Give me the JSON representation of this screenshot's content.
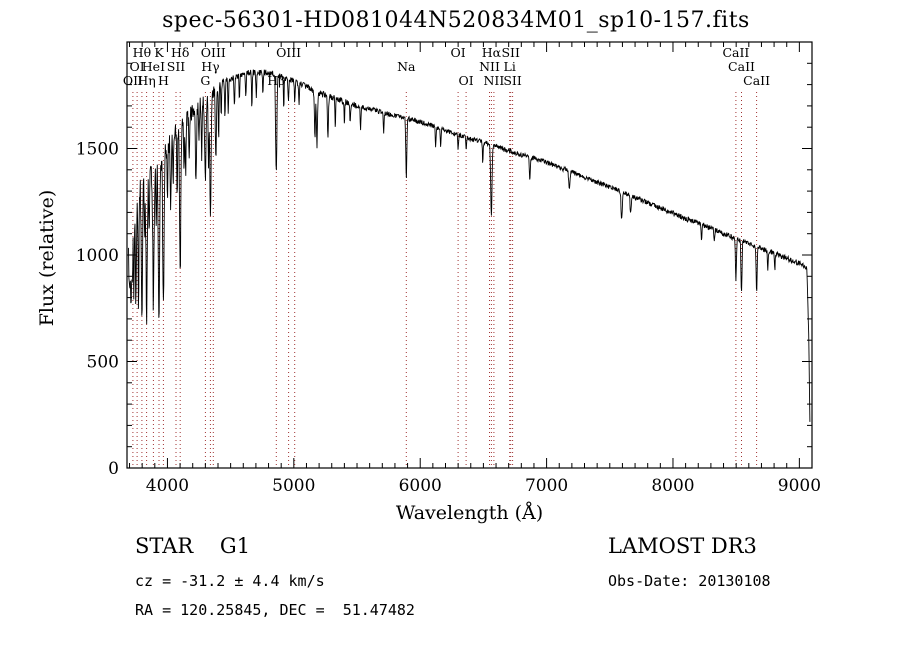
{
  "title": "spec-56301-HD081044N520834M01_sp10-157.fits",
  "footer": {
    "class_label": "STAR    G1",
    "survey": "LAMOST DR3",
    "cz": "cz = -31.2 ± 4.4 km/s",
    "obs_date": "Obs-Date: 20130108",
    "ra_dec": "RA = 120.25845, DEC =  51.47482"
  },
  "chart_data": {
    "type": "line",
    "title": "spec-56301-HD081044N520834M01_sp10-157.fits",
    "xlabel": "Wavelength (Å)",
    "ylabel": "Flux (relative)",
    "xlim": [
      3680,
      9100
    ],
    "ylim": [
      0,
      2000
    ],
    "x_ticks": [
      4000,
      5000,
      6000,
      7000,
      8000,
      9000
    ],
    "y_ticks": [
      0,
      500,
      1000,
      1500
    ],
    "grid": false,
    "line_color": "#000000",
    "marker_color": "#a03232",
    "continuum": [
      [
        3690,
        1150
      ],
      [
        3720,
        1280
      ],
      [
        3760,
        1330
      ],
      [
        3800,
        1360
      ],
      [
        3850,
        1380
      ],
      [
        3900,
        1420
      ],
      [
        3950,
        1450
      ],
      [
        4000,
        1520
      ],
      [
        4050,
        1570
      ],
      [
        4100,
        1620
      ],
      [
        4150,
        1650
      ],
      [
        4200,
        1680
      ],
      [
        4250,
        1710
      ],
      [
        4300,
        1730
      ],
      [
        4350,
        1760
      ],
      [
        4400,
        1800
      ],
      [
        4500,
        1830
      ],
      [
        4600,
        1850
      ],
      [
        4700,
        1860
      ],
      [
        4800,
        1855
      ],
      [
        4900,
        1840
      ],
      [
        5000,
        1815
      ],
      [
        5100,
        1790
      ],
      [
        5200,
        1760
      ],
      [
        5300,
        1740
      ],
      [
        5400,
        1720
      ],
      [
        5500,
        1700
      ],
      [
        5600,
        1685
      ],
      [
        5700,
        1670
      ],
      [
        5800,
        1655
      ],
      [
        5900,
        1640
      ],
      [
        6000,
        1625
      ],
      [
        6100,
        1605
      ],
      [
        6200,
        1585
      ],
      [
        6300,
        1565
      ],
      [
        6400,
        1545
      ],
      [
        6500,
        1530
      ],
      [
        6600,
        1510
      ],
      [
        6700,
        1490
      ],
      [
        6800,
        1470
      ],
      [
        6900,
        1455
      ],
      [
        7000,
        1435
      ],
      [
        7100,
        1410
      ],
      [
        7200,
        1390
      ],
      [
        7300,
        1365
      ],
      [
        7400,
        1340
      ],
      [
        7500,
        1320
      ],
      [
        7600,
        1295
      ],
      [
        7700,
        1270
      ],
      [
        7800,
        1245
      ],
      [
        7900,
        1220
      ],
      [
        8000,
        1195
      ],
      [
        8100,
        1170
      ],
      [
        8200,
        1150
      ],
      [
        8300,
        1125
      ],
      [
        8400,
        1100
      ],
      [
        8500,
        1075
      ],
      [
        8600,
        1055
      ],
      [
        8700,
        1030
      ],
      [
        8800,
        1010
      ],
      [
        8900,
        985
      ],
      [
        8980,
        965
      ],
      [
        9040,
        950
      ],
      [
        9060,
        940
      ],
      [
        9075,
        600
      ],
      [
        9085,
        120
      ]
    ],
    "absorption_lines": [
      [
        3700,
        300,
        6
      ],
      [
        3712,
        350,
        4
      ],
      [
        3722,
        380,
        4
      ],
      [
        3734,
        420,
        4
      ],
      [
        3750,
        520,
        4
      ],
      [
        3771,
        560,
        4
      ],
      [
        3798,
        620,
        5
      ],
      [
        3820,
        280,
        3
      ],
      [
        3835,
        660,
        5
      ],
      [
        3856,
        260,
        3
      ],
      [
        3889,
        640,
        5
      ],
      [
        3912,
        240,
        3
      ],
      [
        3933,
        780,
        5
      ],
      [
        3968,
        720,
        5
      ],
      [
        4000,
        280,
        3
      ],
      [
        4026,
        300,
        4
      ],
      [
        4045,
        240,
        3
      ],
      [
        4077,
        320,
        3
      ],
      [
        4101,
        680,
        5
      ],
      [
        4132,
        220,
        3
      ],
      [
        4144,
        260,
        3
      ],
      [
        4172,
        240,
        3
      ],
      [
        4226,
        360,
        4
      ],
      [
        4250,
        200,
        3
      ],
      [
        4271,
        260,
        3
      ],
      [
        4300,
        380,
        5
      ],
      [
        4325,
        300,
        3
      ],
      [
        4340,
        560,
        5
      ],
      [
        4383,
        340,
        4
      ],
      [
        4405,
        260,
        3
      ],
      [
        4425,
        160,
        3
      ],
      [
        4455,
        180,
        3
      ],
      [
        4481,
        160,
        3
      ],
      [
        4530,
        150,
        3
      ],
      [
        4570,
        120,
        3
      ],
      [
        4620,
        110,
        3
      ],
      [
        4668,
        160,
        3
      ],
      [
        4703,
        120,
        3
      ],
      [
        4755,
        100,
        3
      ],
      [
        4861,
        470,
        5
      ],
      [
        4920,
        140,
        3
      ],
      [
        4957,
        110,
        3
      ],
      [
        5007,
        90,
        3
      ],
      [
        5041,
        90,
        3
      ],
      [
        5167,
        230,
        4
      ],
      [
        5183,
        250,
        4
      ],
      [
        5270,
        200,
        4
      ],
      [
        5328,
        150,
        3
      ],
      [
        5400,
        100,
        3
      ],
      [
        5446,
        100,
        3
      ],
      [
        5528,
        110,
        3
      ],
      [
        5711,
        90,
        3
      ],
      [
        5890,
        290,
        4
      ],
      [
        6122,
        100,
        3
      ],
      [
        6162,
        90,
        3
      ],
      [
        6300,
        70,
        3
      ],
      [
        6363,
        60,
        3
      ],
      [
        6495,
        100,
        3
      ],
      [
        6563,
        340,
        5
      ],
      [
        6867,
        110,
        4
      ],
      [
        7180,
        80,
        5
      ],
      [
        7594,
        130,
        5
      ],
      [
        7665,
        90,
        4
      ],
      [
        8226,
        70,
        4
      ],
      [
        8327,
        60,
        3
      ],
      [
        8498,
        190,
        4
      ],
      [
        8542,
        240,
        4
      ],
      [
        8662,
        210,
        4
      ],
      [
        8750,
        90,
        3
      ],
      [
        8806,
        70,
        3
      ]
    ],
    "spectral_line_markers": [
      {
        "wl": 3727,
        "label": "OII",
        "row": 3
      },
      {
        "wl": 3760,
        "label": "OI",
        "row": 2
      },
      {
        "wl": 3798,
        "label": "Hθ",
        "row": 1
      },
      {
        "wl": 3835,
        "label": "Hη",
        "row": 3
      },
      {
        "wl": 3889,
        "label": "HeI",
        "row": 2
      },
      {
        "wl": 3933,
        "label": "K",
        "row": 1
      },
      {
        "wl": 3968,
        "label": "H",
        "row": 3
      },
      {
        "wl": 4068,
        "label": "SII",
        "row": 2
      },
      {
        "wl": 4101,
        "label": "Hδ",
        "row": 1
      },
      {
        "wl": 4300,
        "label": "G",
        "row": 3
      },
      {
        "wl": 4340,
        "label": "Hγ",
        "row": 2
      },
      {
        "wl": 4363,
        "label": "OIII",
        "row": 1
      },
      {
        "wl": 4861,
        "label": "Hβ",
        "row": 3
      },
      {
        "wl": 4959,
        "label": "OIII",
        "row": 1
      },
      {
        "wl": 5007,
        "label": "",
        "row": 1
      },
      {
        "wl": 5890,
        "label": "Na",
        "row": 2
      },
      {
        "wl": 6300,
        "label": "OI",
        "row": 1
      },
      {
        "wl": 6363,
        "label": "OI",
        "row": 3
      },
      {
        "wl": 6548,
        "label": "NII",
        "row": 2
      },
      {
        "wl": 6563,
        "label": "Hα",
        "row": 1
      },
      {
        "wl": 6583,
        "label": "NII",
        "row": 3
      },
      {
        "wl": 6708,
        "label": "Li",
        "row": 2
      },
      {
        "wl": 6716,
        "label": "SII",
        "row": 1
      },
      {
        "wl": 6731,
        "label": "SII",
        "row": 3
      },
      {
        "wl": 8498,
        "label": "CaII",
        "row": 1
      },
      {
        "wl": 8542,
        "label": "CaII",
        "row": 2
      },
      {
        "wl": 8662,
        "label": "CaII",
        "row": 3
      }
    ]
  }
}
